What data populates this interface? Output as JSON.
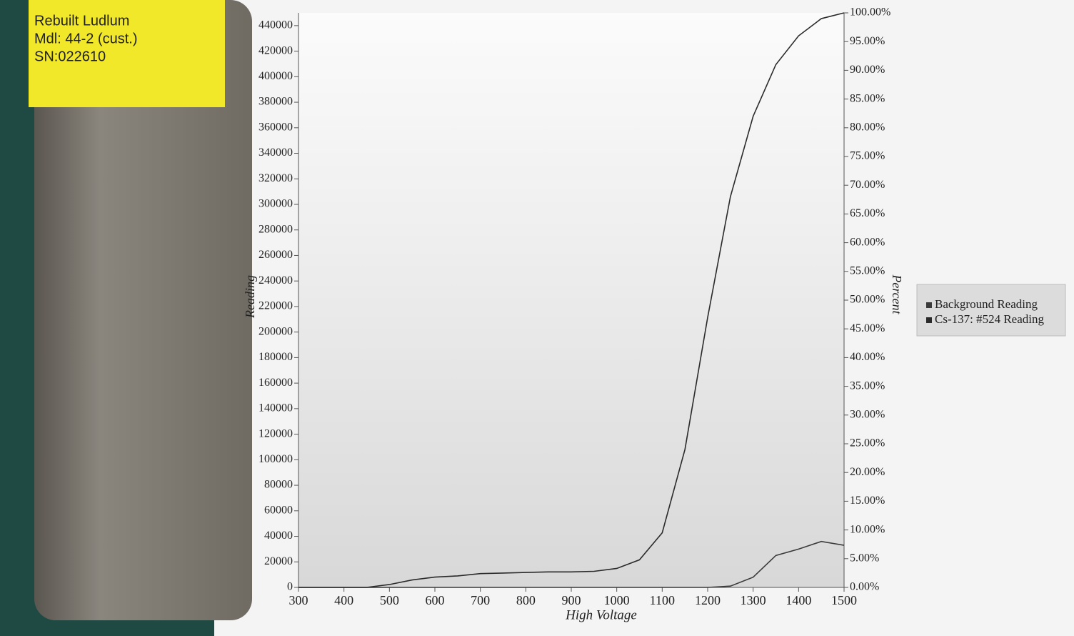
{
  "chart_data": {
    "type": "line",
    "x_label": "High Voltage",
    "y_label": "Reading",
    "y2_label": "Percent",
    "x": [
      300,
      350,
      400,
      450,
      500,
      550,
      600,
      650,
      700,
      750,
      800,
      850,
      900,
      950,
      1000,
      1050,
      1100,
      1150,
      1200,
      1250,
      1300,
      1350,
      1400,
      1450,
      1500
    ],
    "series": [
      {
        "name": "Background Reading",
        "color": "#3a3a3a",
        "axis": "y",
        "values": [
          0,
          0,
          0,
          0,
          0,
          0,
          0,
          0,
          0,
          0,
          0,
          0,
          0,
          0,
          0,
          0,
          0,
          0,
          0,
          1000,
          8000,
          25000,
          30000,
          36000,
          33000
        ]
      },
      {
        "name": "Cs-137: #524 Reading",
        "color": "#2a2a2a",
        "axis": "y2",
        "values": [
          0,
          0,
          0,
          0,
          0.5,
          1.3,
          1.8,
          2.0,
          2.4,
          2.5,
          2.6,
          2.7,
          2.7,
          2.8,
          3.3,
          4.8,
          9.5,
          24,
          47,
          68,
          82,
          91,
          96,
          99,
          100
        ]
      }
    ],
    "xlim": [
      300,
      1500
    ],
    "xticks": [
      300,
      400,
      500,
      600,
      700,
      800,
      900,
      1000,
      1100,
      1200,
      1300,
      1400,
      1500
    ],
    "ylim": [
      0,
      450000
    ],
    "yticks": [
      0,
      20000,
      40000,
      60000,
      80000,
      100000,
      120000,
      140000,
      160000,
      180000,
      200000,
      220000,
      240000,
      260000,
      280000,
      300000,
      320000,
      340000,
      360000,
      380000,
      400000,
      420000,
      440000
    ],
    "y2lim": [
      0,
      100
    ],
    "y2ticks": [
      {
        "value": 0,
        "label": "0.00%"
      },
      {
        "value": 5,
        "label": "5.00%"
      },
      {
        "value": 10,
        "label": "10.00%"
      },
      {
        "value": 15,
        "label": "15.00%"
      },
      {
        "value": 20,
        "label": "20.00%"
      },
      {
        "value": 25,
        "label": "25.00%"
      },
      {
        "value": 30,
        "label": "30.00%"
      },
      {
        "value": 35,
        "label": "35.00%"
      },
      {
        "value": 40,
        "label": "40.00%"
      },
      {
        "value": 45,
        "label": "45.00%"
      },
      {
        "value": 50,
        "label": "50.00%"
      },
      {
        "value": 55,
        "label": "55.00%"
      },
      {
        "value": 60,
        "label": "60.00%"
      },
      {
        "value": 65,
        "label": "65.00%"
      },
      {
        "value": 70,
        "label": "70.00%"
      },
      {
        "value": 75,
        "label": "75.00%"
      },
      {
        "value": 80,
        "label": "80.00%"
      },
      {
        "value": 85,
        "label": "85.00%"
      },
      {
        "value": 90,
        "label": "90.00%"
      },
      {
        "value": 95,
        "label": "95.00%"
      },
      {
        "value": 100,
        "label": "100.00%"
      }
    ],
    "legend": "right"
  }
}
